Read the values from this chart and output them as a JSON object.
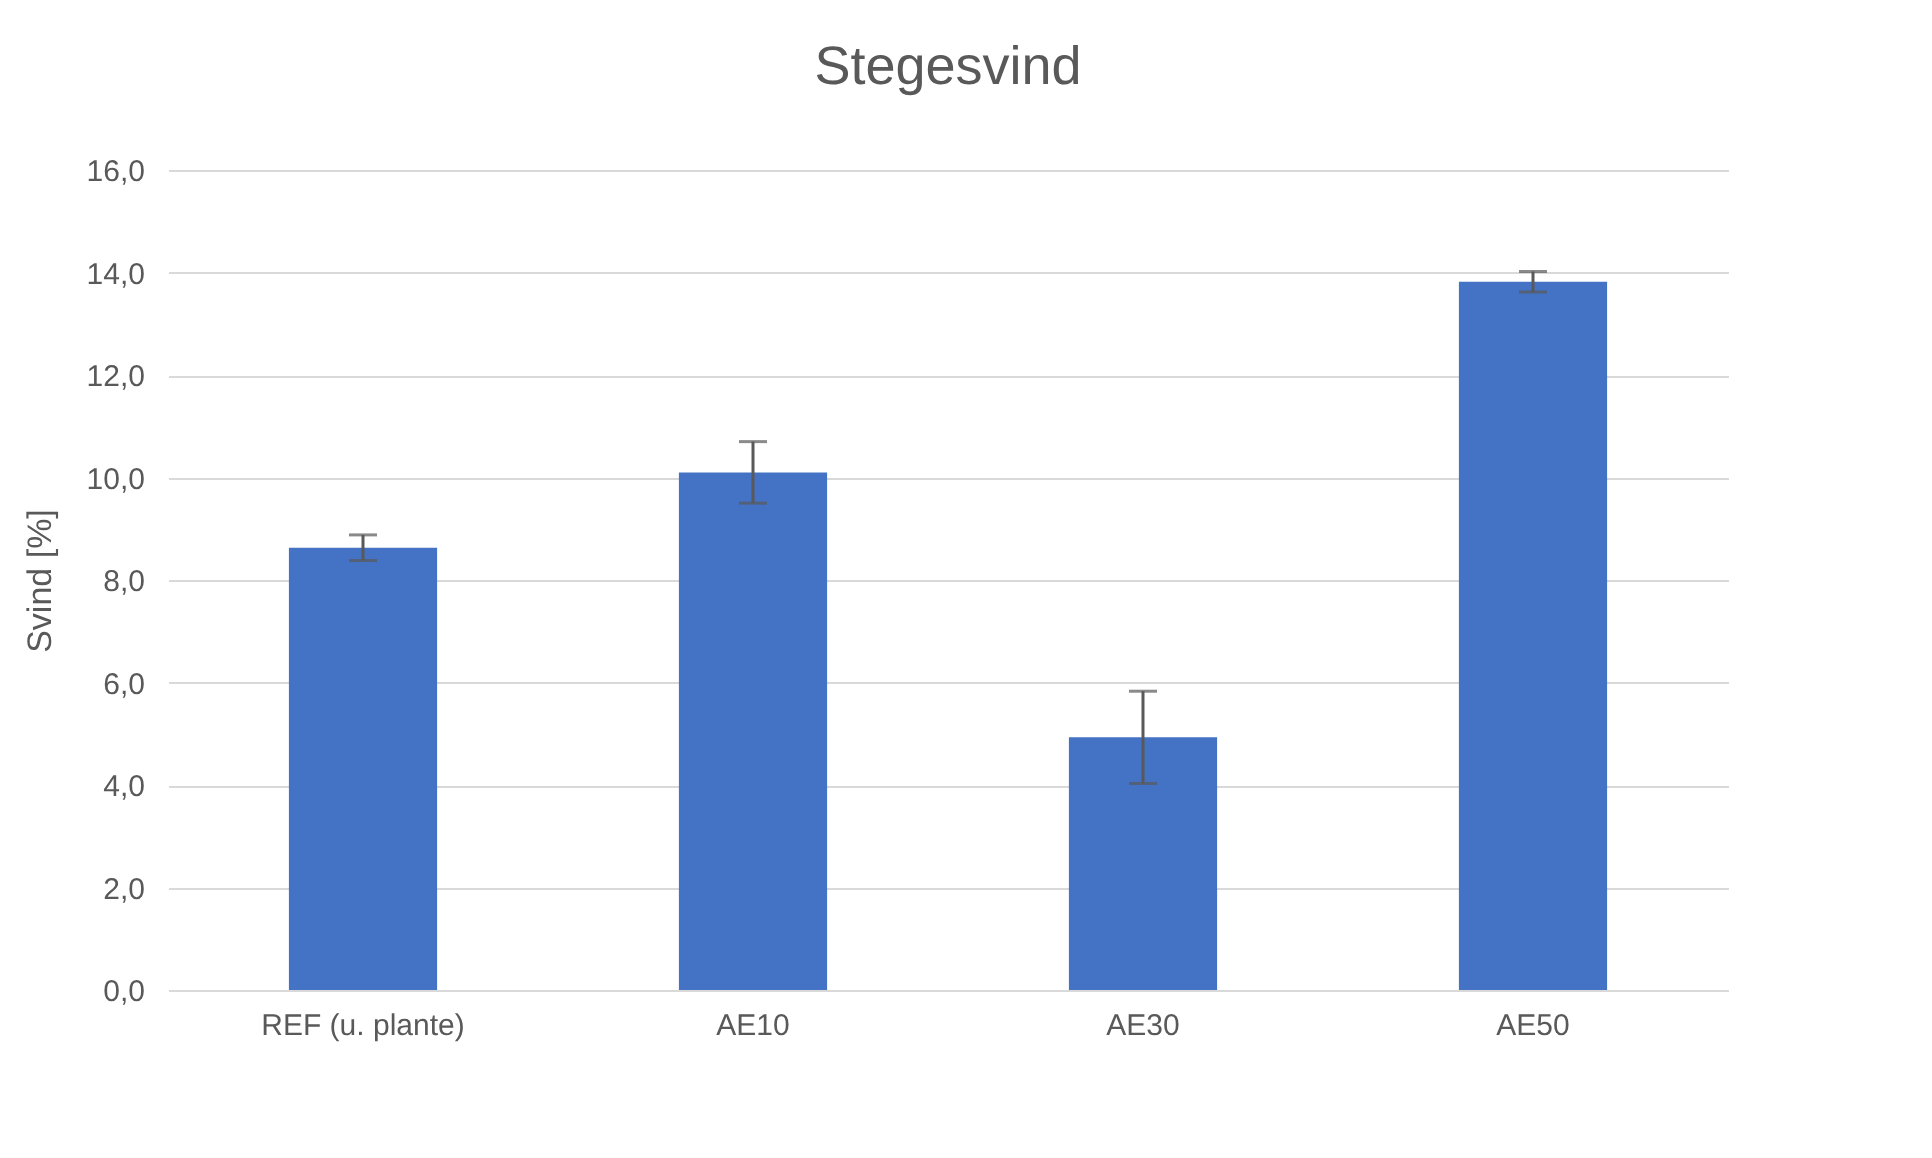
{
  "chart_data": {
    "type": "bar",
    "title": "Stegesvind",
    "ylabel": "Svind [%]",
    "categories": [
      "REF (u. plante)",
      "AE10",
      "AE30",
      "AE50"
    ],
    "values": [
      8.63,
      10.1,
      4.93,
      13.82
    ],
    "errors": [
      0.25,
      0.6,
      0.9,
      0.2
    ],
    "color": "#4472c4",
    "ylim": [
      0,
      16
    ],
    "yticks": [
      {
        "value": 0,
        "label": "0,0"
      },
      {
        "value": 2,
        "label": "2,0"
      },
      {
        "value": 4,
        "label": "4,0"
      },
      {
        "value": 6,
        "label": "6,0"
      },
      {
        "value": 8,
        "label": "8,0"
      },
      {
        "value": 10,
        "label": "10,0"
      },
      {
        "value": 12,
        "label": "12,0"
      },
      {
        "value": 14,
        "label": "14,0"
      },
      {
        "value": 16,
        "label": "16,0"
      }
    ],
    "grid": "y"
  }
}
